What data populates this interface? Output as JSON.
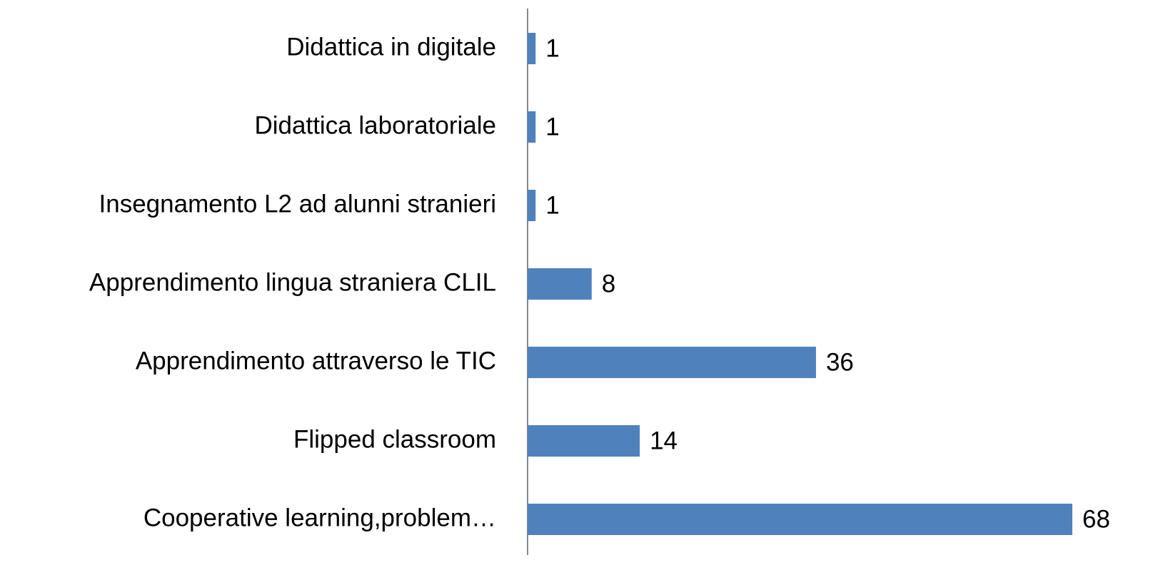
{
  "chart_data": {
    "type": "bar",
    "orientation": "horizontal",
    "categories": [
      "Didattica in digitale",
      "Didattica laboratoriale",
      "Insegnamento L2 ad alunni stranieri",
      "Apprendimento lingua straniera CLIL",
      "Apprendimento attraverso le TIC",
      "Flipped classroom",
      "Cooperative learning,problem…"
    ],
    "values": [
      1,
      1,
      1,
      8,
      36,
      14,
      68
    ],
    "color": "#4f81bd"
  }
}
